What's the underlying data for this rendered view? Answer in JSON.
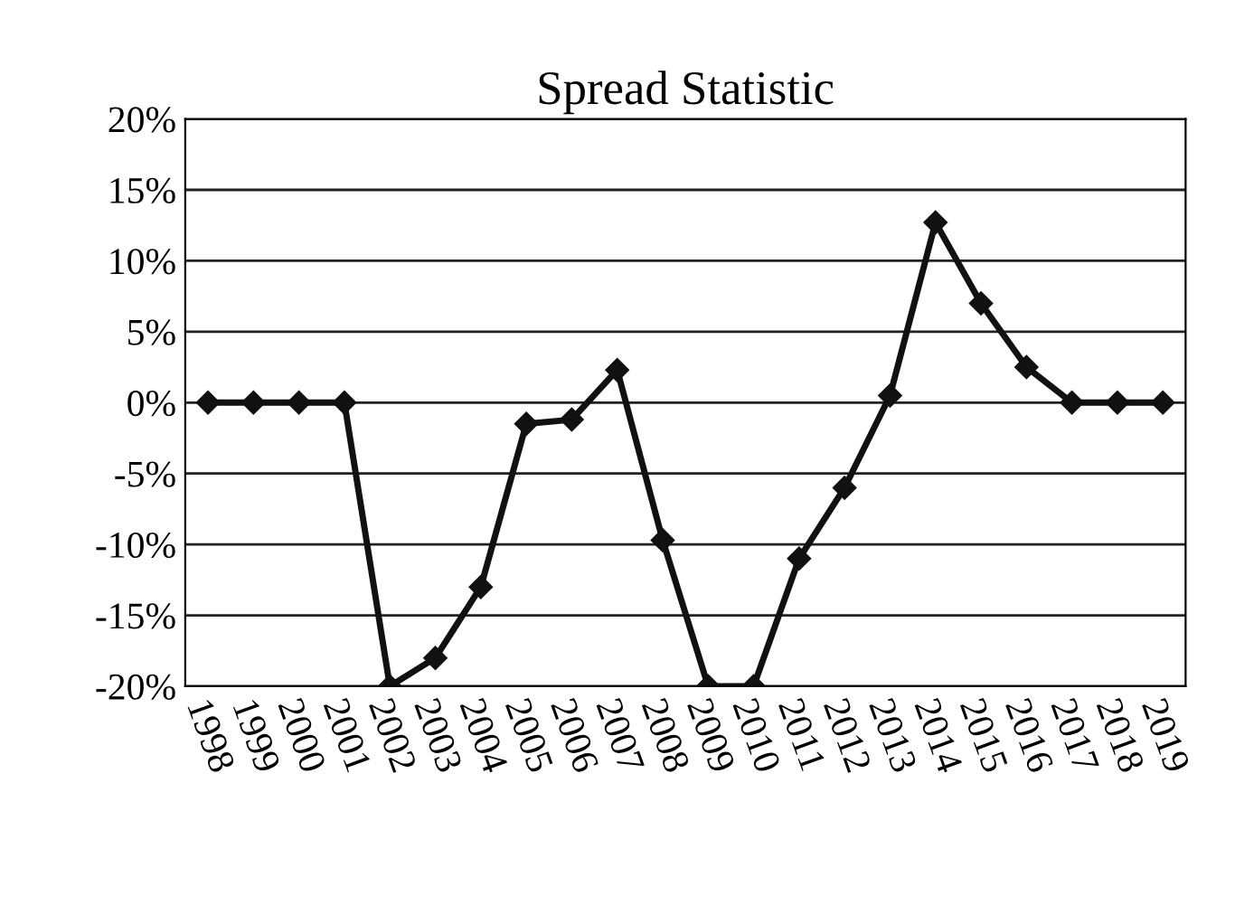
{
  "chart_data": {
    "type": "line",
    "title": "Spread Statistic",
    "categories": [
      "1998",
      "1999",
      "2000",
      "2001",
      "2002",
      "2003",
      "2004",
      "2005",
      "2006",
      "2007",
      "2008",
      "2009",
      "2010",
      "2011",
      "2012",
      "2013",
      "2014",
      "2015",
      "2016",
      "2017",
      "2018",
      "2019"
    ],
    "series": [
      {
        "color": "#111111",
        "values": [
          0,
          0,
          0,
          0,
          -20,
          -18,
          -13,
          -1.5,
          -1.2,
          2.3,
          -9.7,
          -20,
          -20,
          -11,
          -6,
          0.5,
          12.7,
          7,
          2.5,
          0,
          0,
          0
        ]
      }
    ],
    "ylim": [
      -20,
      20
    ],
    "yticks": [
      {
        "value": -20,
        "label": "-20%"
      },
      {
        "value": -15,
        "label": "-15%"
      },
      {
        "value": -10,
        "label": "-10%"
      },
      {
        "value": -5,
        "label": "-5%"
      },
      {
        "value": 0,
        "label": "0%"
      },
      {
        "value": 5,
        "label": "5%"
      },
      {
        "value": 10,
        "label": "10%"
      },
      {
        "value": 15,
        "label": "15%"
      },
      {
        "value": 20,
        "label": "20%"
      }
    ],
    "grid": "y",
    "marker": "diamond",
    "line_style": "solid"
  }
}
